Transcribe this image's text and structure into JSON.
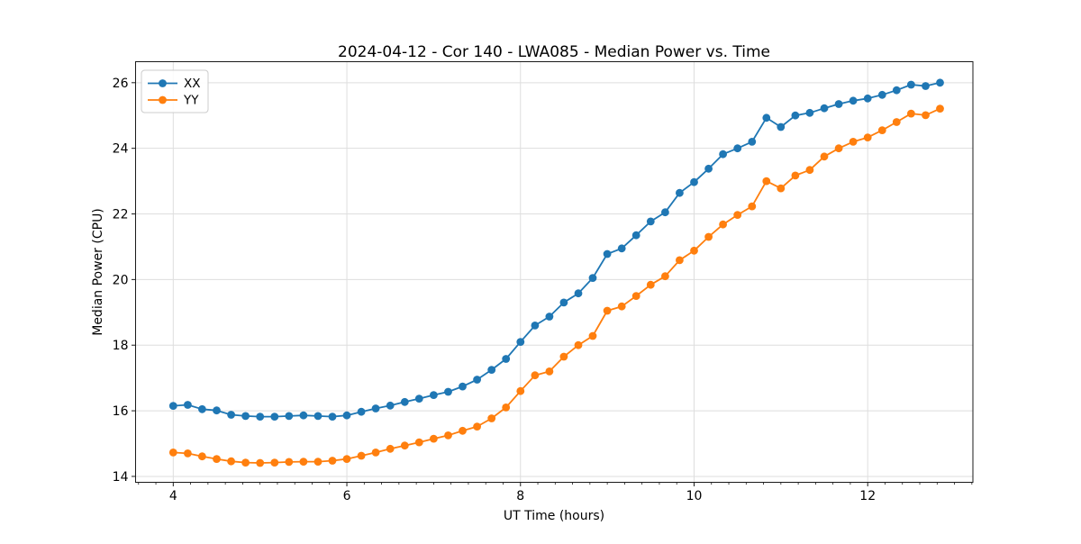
{
  "figure": {
    "title": "2024-04-12 - Cor 140 - LWA085 - Median Power vs. Time"
  },
  "chart_data": {
    "type": "line",
    "title": "2024-04-12 - Cor 140 - LWA085 - Median Power vs. Time",
    "xlabel": "UT Time (hours)",
    "ylabel": "Median Power (CPU)",
    "xlim": [
      3.566,
      13.212
    ],
    "ylim": [
      13.82,
      26.64
    ],
    "xticks": [
      4,
      6,
      8,
      10,
      12
    ],
    "yticks": [
      14,
      16,
      18,
      20,
      22,
      24,
      26
    ],
    "minor_x_step": 0.2,
    "grid": true,
    "legend_position": "upper-left",
    "grid_color": "#dedede",
    "spine_color": "#1a1a1a",
    "x": [
      4.0,
      4.167,
      4.333,
      4.5,
      4.667,
      4.833,
      5.0,
      5.167,
      5.333,
      5.5,
      5.667,
      5.833,
      6.0,
      6.167,
      6.333,
      6.5,
      6.667,
      6.833,
      7.0,
      7.167,
      7.333,
      7.5,
      7.667,
      7.833,
      8.0,
      8.167,
      8.333,
      8.5,
      8.667,
      8.833,
      9.0,
      9.167,
      9.333,
      9.5,
      9.667,
      9.833,
      10.0,
      10.167,
      10.333,
      10.5,
      10.667,
      10.833,
      11.0,
      11.167,
      11.333,
      11.5,
      11.667,
      11.833,
      12.0,
      12.167,
      12.333,
      12.5,
      12.667,
      12.833
    ],
    "series": [
      {
        "name": "XX",
        "color": "#1f77b4",
        "values": [
          16.15,
          16.18,
          16.05,
          16.01,
          15.88,
          15.84,
          15.82,
          15.82,
          15.84,
          15.86,
          15.84,
          15.82,
          15.86,
          15.97,
          16.07,
          16.16,
          16.27,
          16.37,
          16.48,
          16.58,
          16.74,
          16.95,
          17.25,
          17.58,
          18.1,
          18.6,
          18.87,
          19.3,
          19.58,
          20.05,
          20.78,
          20.95,
          21.35,
          21.77,
          22.05,
          22.64,
          22.97,
          23.38,
          23.82,
          24.0,
          24.2,
          24.93,
          24.65,
          25.0,
          25.08,
          25.22,
          25.35,
          25.45,
          25.52,
          25.63,
          25.77,
          25.94,
          25.9,
          26.0
        ]
      },
      {
        "name": "YY",
        "color": "#ff7f0e",
        "values": [
          14.73,
          14.7,
          14.61,
          14.53,
          14.46,
          14.42,
          14.41,
          14.42,
          14.44,
          14.45,
          14.45,
          14.48,
          14.53,
          14.63,
          14.73,
          14.84,
          14.94,
          15.04,
          15.15,
          15.25,
          15.39,
          15.52,
          15.77,
          16.1,
          16.6,
          17.08,
          17.2,
          17.65,
          18.0,
          18.28,
          19.05,
          19.18,
          19.5,
          19.84,
          20.1,
          20.59,
          20.88,
          21.3,
          21.68,
          21.97,
          22.23,
          23.0,
          22.78,
          23.17,
          23.34,
          23.75,
          24.0,
          24.2,
          24.33,
          24.55,
          24.8,
          25.06,
          25.01,
          25.21
        ]
      }
    ]
  }
}
